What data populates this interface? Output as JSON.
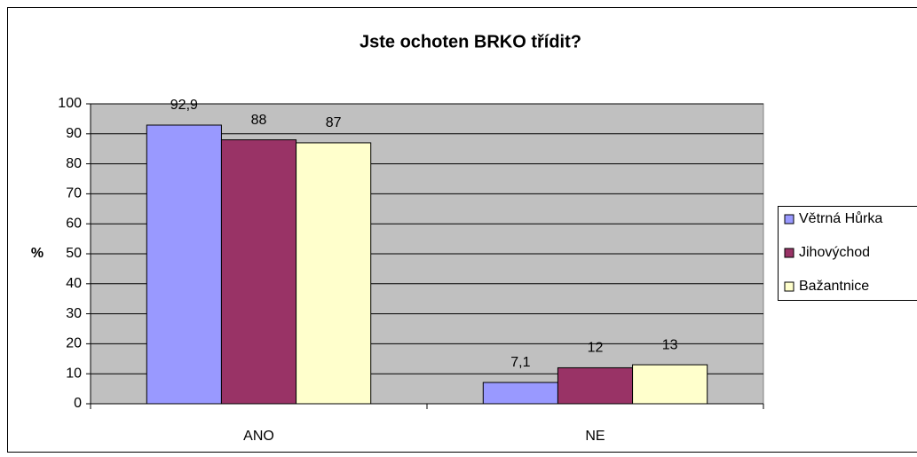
{
  "chart_data": {
    "type": "bar",
    "title": "Jste ochoten BRKO třídit?",
    "y_label": "%",
    "categories": [
      "ANO",
      "NE"
    ],
    "series": [
      {
        "name": "Větrná Hůrka",
        "color": "#9999ff",
        "values": [
          92.9,
          7.1
        ],
        "value_labels": [
          "92,9",
          "7,1"
        ]
      },
      {
        "name": "Jihovýchod",
        "color": "#993366",
        "values": [
          88,
          12
        ],
        "value_labels": [
          "88",
          "12"
        ]
      },
      {
        "name": "Bažantnice",
        "color": "#ffffcc",
        "values": [
          87,
          13
        ],
        "value_labels": [
          "87",
          "13"
        ]
      }
    ],
    "ylim": [
      0,
      100
    ],
    "yticks": [
      0,
      10,
      20,
      30,
      40,
      50,
      60,
      70,
      80,
      90,
      100
    ],
    "grid": true,
    "legend": "right",
    "plot_background": "#c0c0c0"
  }
}
